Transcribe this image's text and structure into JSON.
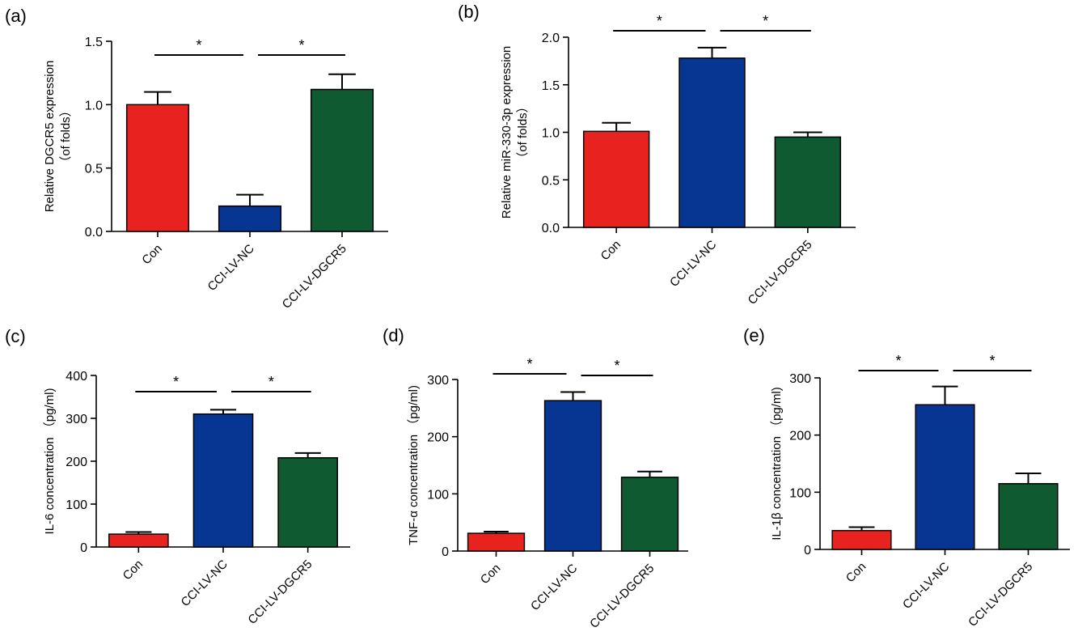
{
  "colors": {
    "con": "#e8231f",
    "nc": "#063592",
    "dgcr5": "#0f5a31"
  },
  "chart_data": [
    {
      "panel": "(a)",
      "type": "bar",
      "categories": [
        "Con",
        "CCI-LV-NC",
        "CCI-LV-DGCR5"
      ],
      "values": [
        1.0,
        0.2,
        1.12
      ],
      "errors": [
        0.1,
        0.09,
        0.12
      ],
      "ylabel": "Relative DGCR5 expression",
      "ylabel2": "（of folds）",
      "ylim": [
        0,
        1.5
      ],
      "yticks": [
        "0.0",
        "0.5",
        "1.0",
        "1.5"
      ],
      "significance": [
        "*",
        "*"
      ]
    },
    {
      "panel": "(b)",
      "type": "bar",
      "categories": [
        "Con",
        "CCI-LV-NC",
        "CCI-LV-DGCR5"
      ],
      "values": [
        1.01,
        1.78,
        0.95
      ],
      "errors": [
        0.09,
        0.11,
        0.05
      ],
      "ylabel": "Relative miR-330-3p expression",
      "ylabel2": "（of folds）",
      "ylim": [
        0,
        2.0
      ],
      "yticks": [
        "0.0",
        "0.5",
        "1.0",
        "1.5",
        "2.0"
      ],
      "significance": [
        "*",
        "*"
      ]
    },
    {
      "panel": "(c)",
      "type": "bar",
      "categories": [
        "Con",
        "CCI-LV-NC",
        "CCI-LV-DGCR5"
      ],
      "values": [
        30,
        310,
        208
      ],
      "errors": [
        5,
        10,
        11
      ],
      "ylabel": "IL-6  concentration （pg/ml)",
      "ylim": [
        0,
        400
      ],
      "yticks": [
        "0",
        "100",
        "200",
        "300",
        "400"
      ],
      "significance": [
        "*",
        "*"
      ]
    },
    {
      "panel": "(d)",
      "type": "bar",
      "categories": [
        "Con",
        "CCI-LV-NC",
        "CCI-LV-DGCR5"
      ],
      "values": [
        31,
        263,
        129
      ],
      "errors": [
        3,
        15,
        10
      ],
      "ylabel": "TNF-α  concentration （pg/ml)",
      "ylim": [
        0,
        300
      ],
      "yticks": [
        "0",
        "100",
        "200",
        "300"
      ],
      "significance": [
        "*",
        "*"
      ]
    },
    {
      "panel": "(e)",
      "type": "bar",
      "categories": [
        "Con",
        "CCI-LV-NC",
        "CCI-LV-DGCR5"
      ],
      "values": [
        33,
        253,
        115
      ],
      "errors": [
        6,
        32,
        18
      ],
      "ylabel": "IL-1β  concentration （pg/ml)",
      "ylim": [
        0,
        300
      ],
      "yticks": [
        "0",
        "100",
        "200",
        "300"
      ],
      "significance": [
        "*",
        "*"
      ]
    }
  ]
}
